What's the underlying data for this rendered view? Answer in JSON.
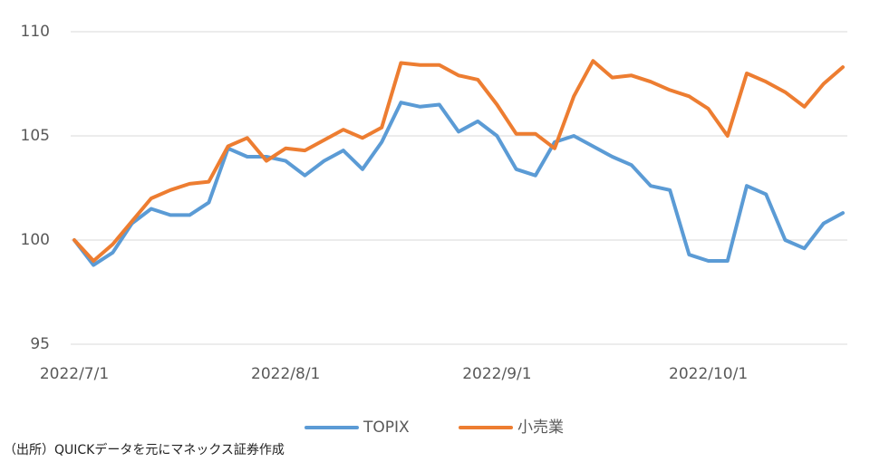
{
  "chart_data": {
    "type": "line",
    "categories": [
      "2022/7/1",
      null,
      null,
      null,
      null,
      null,
      null,
      null,
      null,
      null,
      null,
      "2022/8/1",
      null,
      null,
      null,
      null,
      null,
      null,
      null,
      null,
      null,
      null,
      "2022/9/1",
      null,
      null,
      null,
      null,
      null,
      null,
      null,
      null,
      null,
      null,
      "2022/10/1",
      null,
      null,
      null,
      null,
      null,
      null,
      null
    ],
    "series": [
      {
        "name": "TOPIX",
        "color": "#5b9bd5",
        "values": [
          100,
          98.8,
          99.4,
          100.8,
          101.5,
          101.2,
          101.2,
          101.8,
          104.4,
          104.0,
          104.0,
          103.8,
          103.1,
          103.8,
          104.3,
          103.4,
          104.7,
          106.6,
          106.4,
          106.5,
          105.2,
          105.7,
          105.0,
          103.4,
          103.1,
          104.7,
          105.0,
          104.5,
          104.0,
          103.6,
          102.6,
          102.4,
          99.3,
          99.0,
          99.0,
          102.6,
          102.2,
          100.0,
          99.6,
          100.8,
          101.3
        ]
      },
      {
        "name": "小売業",
        "color": "#ed7d31",
        "values": [
          100,
          99.0,
          99.8,
          100.9,
          102.0,
          102.4,
          102.7,
          102.8,
          104.5,
          104.9,
          103.8,
          104.4,
          104.3,
          104.8,
          105.3,
          104.9,
          105.4,
          108.5,
          108.4,
          108.4,
          107.9,
          107.7,
          106.5,
          105.1,
          105.1,
          104.4,
          106.9,
          108.6,
          107.8,
          107.9,
          107.6,
          107.2,
          106.9,
          106.3,
          105.0,
          108.0,
          107.6,
          107.1,
          106.4,
          107.5,
          108.3
        ]
      }
    ],
    "ylim": [
      95,
      110
    ],
    "yticks": [
      95,
      100,
      105,
      110
    ],
    "grid": true,
    "legend": "bottom",
    "source": "（出所）QUICKデータを元にマネックス証券作成"
  }
}
